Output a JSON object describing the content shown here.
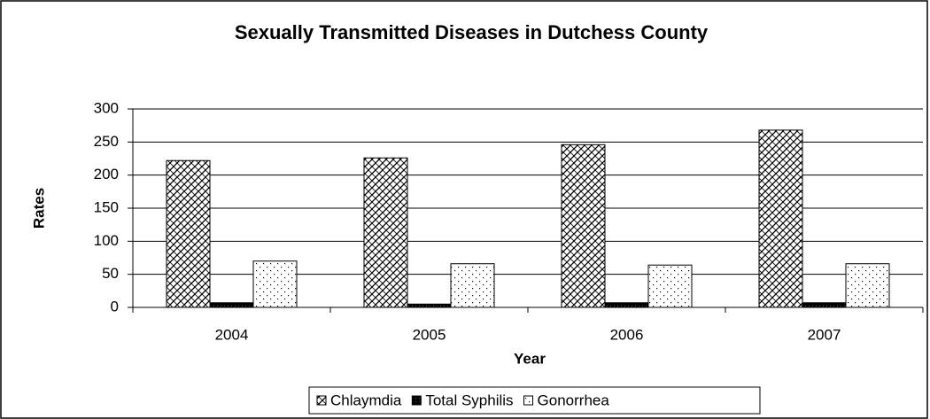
{
  "chart_data": {
    "type": "bar",
    "title": "Sexually Transmitted Diseases in Dutchess County",
    "x_label": "Year",
    "y_label": "Rates",
    "categories": [
      "2004",
      "2005",
      "2006",
      "2007"
    ],
    "series": [
      {
        "name": "Chlaymdia",
        "color": "#000000",
        "pattern": "crosshatch",
        "values": [
          222,
          226,
          246,
          268
        ]
      },
      {
        "name": "Total Syphilis",
        "color": "#000000",
        "pattern": "solid",
        "values": [
          7,
          5,
          7,
          7
        ]
      },
      {
        "name": "Gonorrhea",
        "color": "#000000",
        "pattern": "dots",
        "values": [
          70,
          66,
          64,
          66
        ]
      }
    ],
    "ylim": [
      0,
      300
    ],
    "yticks": [
      0,
      50,
      100,
      150,
      200,
      250,
      300
    ],
    "grid": true,
    "legend": "bottom"
  }
}
